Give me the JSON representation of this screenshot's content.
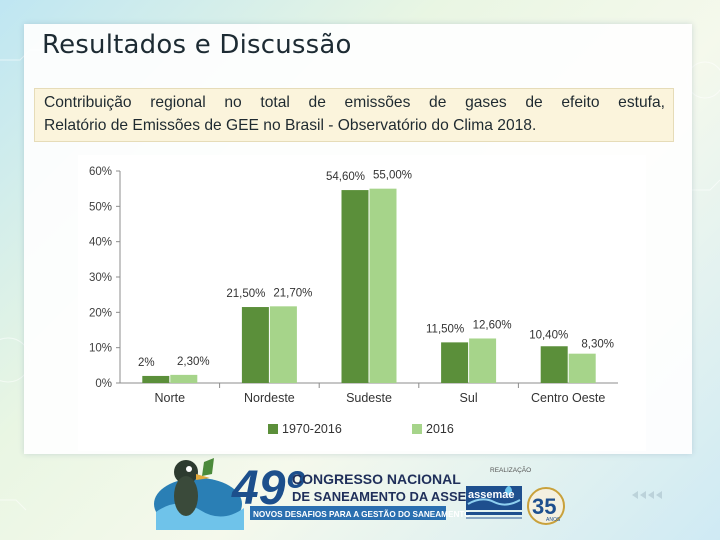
{
  "slide": {
    "title": "Resultados e Discussão",
    "caption_lines": [
      "Contribuição regional no total de emissões de gases de efeito estufa,",
      "Relatório de Emissões de GEE no Brasil - Observatório do Clima 2018."
    ]
  },
  "chart_data": {
    "type": "bar",
    "categories": [
      "Norte",
      "Nordeste",
      "Sudeste",
      "Sul",
      "Centro Oeste"
    ],
    "series": [
      {
        "name": "1970-2016",
        "values": [
          2.0,
          21.5,
          54.6,
          11.5,
          10.4
        ],
        "labels": [
          "2%",
          "21,50%",
          "54,60%",
          "11,50%",
          "10,40%"
        ],
        "color": "#5b8f3a"
      },
      {
        "name": "2016",
        "values": [
          2.3,
          21.7,
          55.0,
          12.6,
          8.3
        ],
        "labels": [
          "2,30%",
          "21,70%",
          "55,00%",
          "12,60%",
          "8,30%"
        ],
        "color": "#a6d48a"
      }
    ],
    "yticks": [
      "0%",
      "10%",
      "20%",
      "30%",
      "40%",
      "50%",
      "60%"
    ],
    "ylim": [
      0,
      60
    ],
    "grid": false,
    "legend": "bottom"
  },
  "footer": {
    "event_number": "49º",
    "event_line1": "CONGRESSO NACIONAL",
    "event_line2": "DE SANEAMENTO DA ASSEMAE",
    "event_tagline": "NOVOS DESAFIOS PARA A GESTÃO DO SANEAMENTO",
    "realizacao": "REALIZAÇÃO",
    "org_name": "assemae",
    "anniversary": "35",
    "anniversary_unit": "ANOS"
  }
}
